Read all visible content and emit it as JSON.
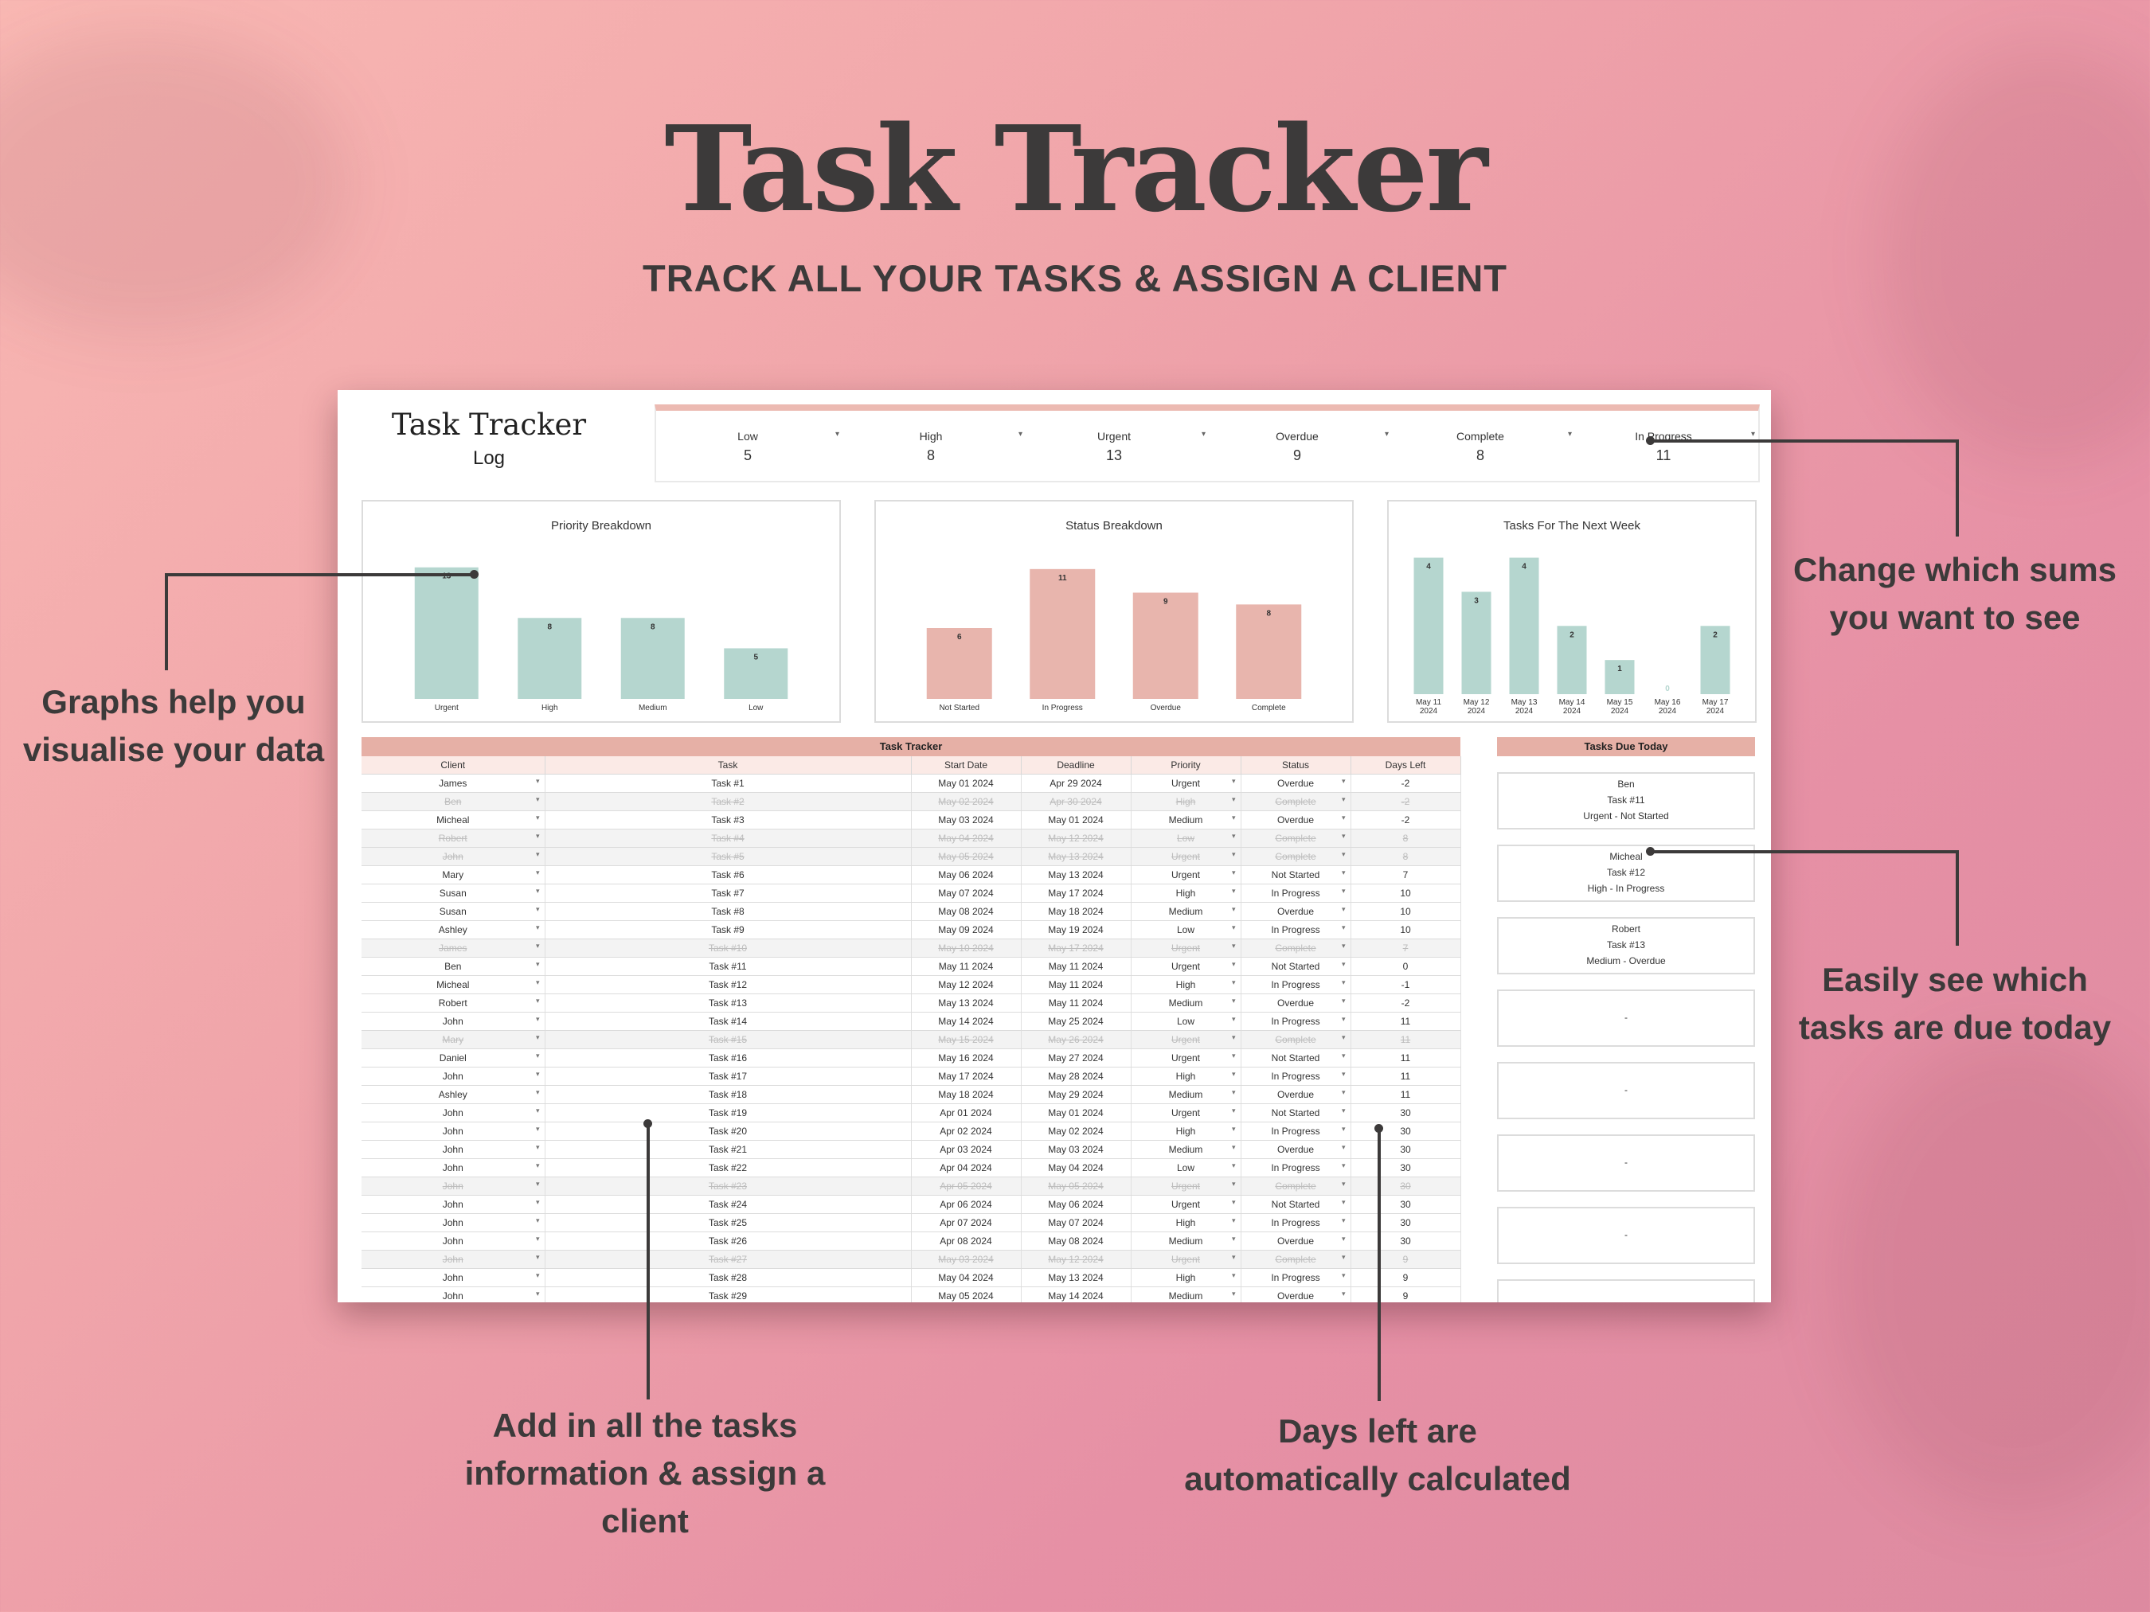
{
  "hero": {
    "title": "Task Tracker",
    "subtitle": "TRACK ALL YOUR TASKS & ASSIGN A CLIENT"
  },
  "annotations": {
    "graphs": [
      "Graphs help you",
      "visualise your data"
    ],
    "sums": [
      "Change which sums",
      "you want to see"
    ],
    "due": [
      "Easily see which",
      "tasks are due today"
    ],
    "add": [
      "Add in all the tasks",
      "information & assign a",
      "client"
    ],
    "days": [
      "Days left are",
      "automatically calculated"
    ]
  },
  "sheet": {
    "title": "Task Tracker",
    "subtitle": "Log",
    "kpis": [
      {
        "label": "Low",
        "value": "5"
      },
      {
        "label": "High",
        "value": "8"
      },
      {
        "label": "Urgent",
        "value": "13"
      },
      {
        "label": "Overdue",
        "value": "9"
      },
      {
        "label": "Complete",
        "value": "8"
      },
      {
        "label": "In Progress",
        "value": "11"
      }
    ]
  },
  "chart_data": [
    {
      "type": "bar",
      "title": "Priority Breakdown",
      "categories": [
        "Urgent",
        "High",
        "Medium",
        "Low"
      ],
      "values": [
        13,
        8,
        8,
        5
      ],
      "ylim": [
        0,
        14
      ],
      "color": "#b5d6cf",
      "grid": false
    },
    {
      "type": "bar",
      "title": "Status Breakdown",
      "categories": [
        "Not Started",
        "In Progress",
        "Overdue",
        "Complete"
      ],
      "values": [
        6,
        11,
        9,
        8
      ],
      "ylim": [
        0,
        12
      ],
      "color": "#e8b5ad",
      "grid": false
    },
    {
      "type": "bar",
      "title": "Tasks For The Next Week",
      "categories": [
        "May 11 2024",
        "May 12 2024",
        "May 13 2024",
        "May 14 2024",
        "May 15 2024",
        "May 16 2024",
        "May 17 2024"
      ],
      "values": [
        4,
        3,
        4,
        2,
        1,
        0,
        2
      ],
      "ylim": [
        0,
        4.2
      ],
      "color": "#b5d6cf",
      "grid": false
    }
  ],
  "table": {
    "title": "Task Tracker",
    "columns": [
      "Client",
      "Task",
      "Start Date",
      "Deadline",
      "Priority",
      "Status",
      "Days Left"
    ],
    "rows": [
      [
        "James",
        "Task #1",
        "May 01 2024",
        "Apr 29 2024",
        "Urgent",
        "Overdue",
        "-2"
      ],
      [
        "Ben",
        "Task #2",
        "May 02 2024",
        "Apr 30 2024",
        "High",
        "Complete",
        "-2"
      ],
      [
        "Micheal",
        "Task #3",
        "May 03 2024",
        "May 01 2024",
        "Medium",
        "Overdue",
        "-2"
      ],
      [
        "Robert",
        "Task #4",
        "May 04 2024",
        "May 12 2024",
        "Low",
        "Complete",
        "8"
      ],
      [
        "John",
        "Task #5",
        "May 05 2024",
        "May 13 2024",
        "Urgent",
        "Complete",
        "8"
      ],
      [
        "Mary",
        "Task #6",
        "May 06 2024",
        "May 13 2024",
        "Urgent",
        "Not Started",
        "7"
      ],
      [
        "Susan",
        "Task #7",
        "May 07 2024",
        "May 17 2024",
        "High",
        "In Progress",
        "10"
      ],
      [
        "Susan",
        "Task #8",
        "May 08 2024",
        "May 18 2024",
        "Medium",
        "Overdue",
        "10"
      ],
      [
        "Ashley",
        "Task #9",
        "May 09 2024",
        "May 19 2024",
        "Low",
        "In Progress",
        "10"
      ],
      [
        "James",
        "Task #10",
        "May 10 2024",
        "May 17 2024",
        "Urgent",
        "Complete",
        "7"
      ],
      [
        "Ben",
        "Task #11",
        "May 11 2024",
        "May 11 2024",
        "Urgent",
        "Not Started",
        "0"
      ],
      [
        "Micheal",
        "Task #12",
        "May 12 2024",
        "May 11 2024",
        "High",
        "In Progress",
        "-1"
      ],
      [
        "Robert",
        "Task #13",
        "May 13 2024",
        "May 11 2024",
        "Medium",
        "Overdue",
        "-2"
      ],
      [
        "John",
        "Task #14",
        "May 14 2024",
        "May 25 2024",
        "Low",
        "In Progress",
        "11"
      ],
      [
        "Mary",
        "Task #15",
        "May 15 2024",
        "May 26 2024",
        "Urgent",
        "Complete",
        "11"
      ],
      [
        "Daniel",
        "Task #16",
        "May 16 2024",
        "May 27 2024",
        "Urgent",
        "Not Started",
        "11"
      ],
      [
        "John",
        "Task #17",
        "May 17 2024",
        "May 28 2024",
        "High",
        "In Progress",
        "11"
      ],
      [
        "Ashley",
        "Task #18",
        "May 18 2024",
        "May 29 2024",
        "Medium",
        "Overdue",
        "11"
      ],
      [
        "John",
        "Task #19",
        "Apr 01 2024",
        "May 01 2024",
        "Urgent",
        "Not Started",
        "30"
      ],
      [
        "John",
        "Task #20",
        "Apr 02 2024",
        "May 02 2024",
        "High",
        "In Progress",
        "30"
      ],
      [
        "John",
        "Task #21",
        "Apr 03 2024",
        "May 03 2024",
        "Medium",
        "Overdue",
        "30"
      ],
      [
        "John",
        "Task #22",
        "Apr 04 2024",
        "May 04 2024",
        "Low",
        "In Progress",
        "30"
      ],
      [
        "John",
        "Task #23",
        "Apr 05 2024",
        "May 05 2024",
        "Urgent",
        "Complete",
        "30"
      ],
      [
        "John",
        "Task #24",
        "Apr 06 2024",
        "May 06 2024",
        "Urgent",
        "Not Started",
        "30"
      ],
      [
        "John",
        "Task #25",
        "Apr 07 2024",
        "May 07 2024",
        "High",
        "In Progress",
        "30"
      ],
      [
        "John",
        "Task #26",
        "Apr 08 2024",
        "May 08 2024",
        "Medium",
        "Overdue",
        "30"
      ],
      [
        "John",
        "Task #27",
        "May 03 2024",
        "May 12 2024",
        "Urgent",
        "Complete",
        "9"
      ],
      [
        "John",
        "Task #28",
        "May 04 2024",
        "May 13 2024",
        "High",
        "In Progress",
        "9"
      ],
      [
        "John",
        "Task #29",
        "May 05 2024",
        "May 14 2024",
        "Medium",
        "Overdue",
        "9"
      ]
    ],
    "completed_rows": [
      1,
      3,
      4,
      9,
      14,
      22,
      26
    ]
  },
  "due_today": {
    "title": "Tasks Due Today",
    "cards": [
      {
        "client": "Ben",
        "task": "Task #11",
        "meta": "Urgent  -  Not Started"
      },
      {
        "client": "Micheal",
        "task": "Task #12",
        "meta": "High  -  In Progress"
      },
      {
        "client": "Robert",
        "task": "Task #13",
        "meta": "Medium  -  Overdue"
      },
      {
        "client": "",
        "task": "",
        "meta": "-"
      },
      {
        "client": "",
        "task": "",
        "meta": "-"
      },
      {
        "client": "",
        "task": "",
        "meta": "-"
      },
      {
        "client": "",
        "task": "",
        "meta": "-"
      },
      {
        "client": "",
        "task": "",
        "meta": ""
      }
    ]
  }
}
